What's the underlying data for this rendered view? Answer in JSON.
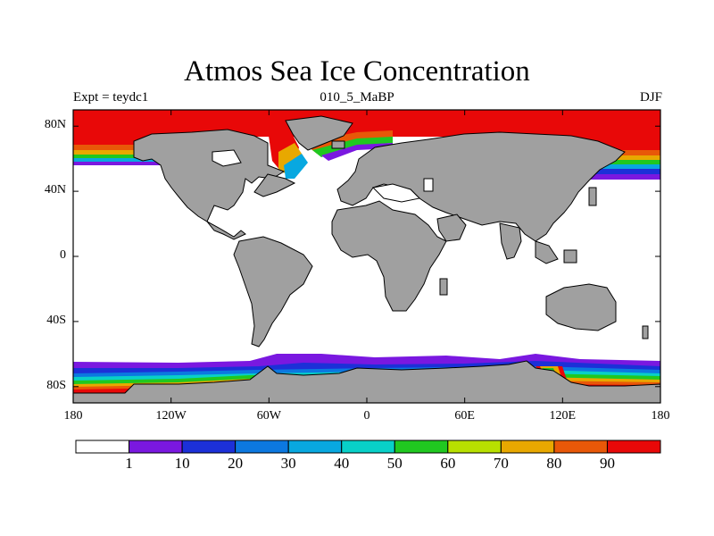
{
  "title": "Atmos Sea Ice Concentration",
  "left_label": "Expt = teydc1",
  "center_label": "010_5_MaBP",
  "right_label": "DJF",
  "map": {
    "projection": "cylindrical equidistant",
    "lon_range": [
      -180,
      180
    ],
    "lat_range": [
      -90,
      90
    ],
    "land_color": "#a0a0a0",
    "ocean_color": "#ffffff",
    "lat_ticks": [
      {
        "lat": 80,
        "label": "80N"
      },
      {
        "lat": 40,
        "label": "40N"
      },
      {
        "lat": 0,
        "label": "0"
      },
      {
        "lat": -40,
        "label": "40S"
      },
      {
        "lat": -80,
        "label": "80S"
      }
    ],
    "lon_ticks": [
      {
        "lon": -180,
        "label": "180"
      },
      {
        "lon": -120,
        "label": "120W"
      },
      {
        "lon": -60,
        "label": "60W"
      },
      {
        "lon": 0,
        "label": "0"
      },
      {
        "lon": 60,
        "label": "60E"
      },
      {
        "lon": 120,
        "label": "120E"
      },
      {
        "lon": 180,
        "label": "180"
      }
    ]
  },
  "colorbar": {
    "colors": [
      "#ffffff",
      "#7a18e0",
      "#1c30d8",
      "#0c78e0",
      "#08a8e0",
      "#08d0c8",
      "#20c820",
      "#b8e000",
      "#e8a800",
      "#e85808",
      "#e80808"
    ],
    "labels": [
      "1",
      "10",
      "20",
      "30",
      "40",
      "50",
      "60",
      "70",
      "80",
      "90"
    ]
  }
}
